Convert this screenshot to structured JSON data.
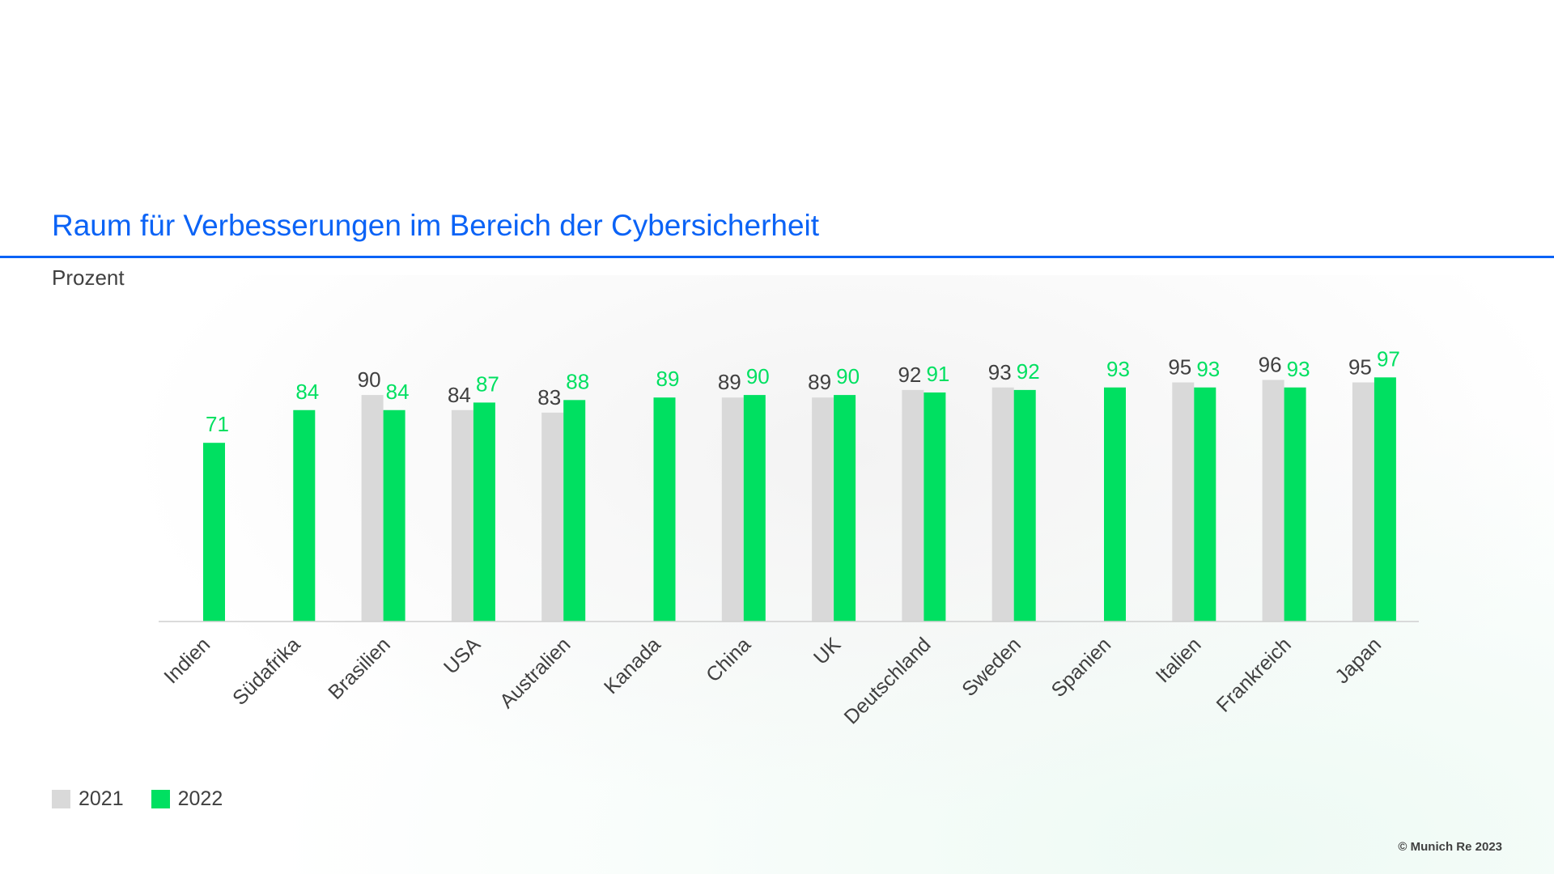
{
  "header": {
    "title": "Raum für Verbesserungen im Bereich der Cybersicherheit",
    "unit_label": "Prozent"
  },
  "footer": {
    "copyright": "© Munich Re 2023"
  },
  "colors": {
    "2021": "#d9d9d9",
    "2022": "#00e061",
    "title": "#0b63f6",
    "label_2021": "#404040"
  },
  "chart_data": {
    "type": "bar",
    "title": "Raum für Verbesserungen im Bereich der Cybersicherheit",
    "ylabel": "Prozent",
    "xlabel": "",
    "ylim": [
      0,
      100
    ],
    "grid": false,
    "legend_position": "bottom-left",
    "categories": [
      "Indien",
      "Südafrika",
      "Brasilien",
      "USA",
      "Australien",
      "Kanada",
      "China",
      "UK",
      "Deutschland",
      "Sweden",
      "Spanien",
      "Italien",
      "Frankreich",
      "Japan"
    ],
    "series": [
      {
        "name": "2021",
        "values": [
          null,
          null,
          90,
          84,
          83,
          null,
          89,
          89,
          92,
          93,
          null,
          95,
          96,
          95
        ]
      },
      {
        "name": "2022",
        "values": [
          71,
          84,
          84,
          87,
          88,
          89,
          90,
          90,
          91,
          92,
          93,
          93,
          93,
          97
        ]
      }
    ]
  }
}
